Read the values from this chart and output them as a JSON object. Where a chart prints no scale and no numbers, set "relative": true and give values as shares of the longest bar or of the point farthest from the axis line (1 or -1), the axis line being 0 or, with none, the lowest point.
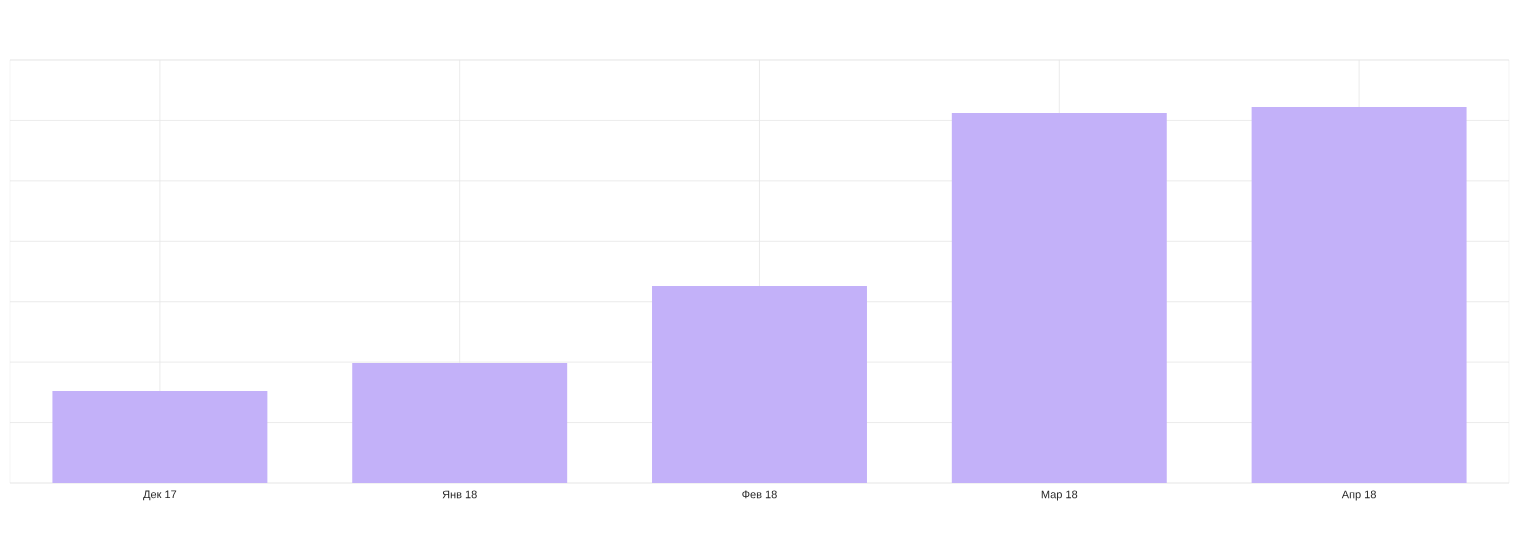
{
  "chart_data": {
    "type": "bar",
    "relative": true,
    "categories": [
      "Дек 17",
      "Янв 18",
      "Фев 18",
      "Мар 18",
      "Апр 18"
    ],
    "values": [
      0.245,
      0.319,
      0.524,
      0.984,
      1
    ],
    "color": "#c3b1f9",
    "grid": true,
    "tick_labels": "x"
  }
}
